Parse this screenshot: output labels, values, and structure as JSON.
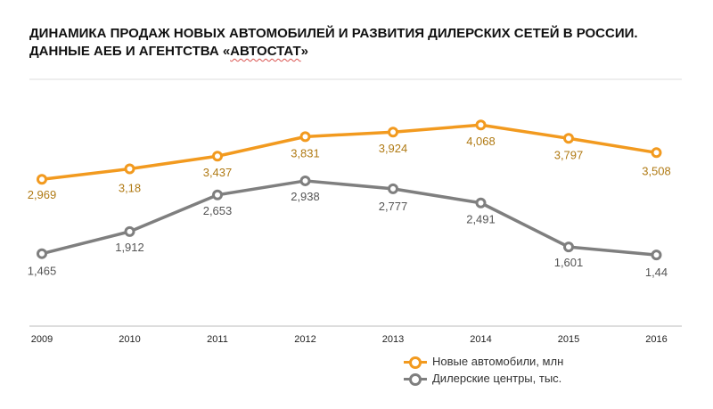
{
  "title": {
    "line1": "ДИНАМИКА ПРОДАЖ НОВЫХ АВТОМОБИЛЕЙ И РАЗВИТИЯ ДИЛЕРСКИХ СЕТЕЙ В РОССИИ.",
    "line2_prefix": "ДАННЫЕ АЕБ И АГЕНТСТВА «",
    "line2_word": "АВТОСТАТ",
    "line2_suffix": "»"
  },
  "colors": {
    "series_new_cars": "#f29a1f",
    "series_dealers": "#7f7f7f",
    "label_new_cars": "#b07a14",
    "label_dealers": "#555555",
    "grid": "#dddddd",
    "axis": "#bbbbbb"
  },
  "chart_data": {
    "type": "line",
    "x": [
      "2009",
      "2010",
      "2011",
      "2012",
      "2013",
      "2014",
      "2015",
      "2016"
    ],
    "series": [
      {
        "name": "Новые автомобили, млн",
        "values": [
          2.969,
          3.18,
          3.437,
          3.831,
          3.924,
          4.068,
          3.797,
          3.508
        ],
        "labels": [
          "2,969",
          "3,18",
          "3,437",
          "3,831",
          "3,924",
          "4,068",
          "3,797",
          "3,508"
        ],
        "color_key": "series_new_cars"
      },
      {
        "name": "Дилерские центры, тыс.",
        "values": [
          1.465,
          1.912,
          2.653,
          2.938,
          2.777,
          2.491,
          1.601,
          1.44
        ],
        "labels": [
          "1,465",
          "1,912",
          "2,653",
          "2,938",
          "2,777",
          "2,491",
          "1,601",
          "1,44"
        ],
        "color_key": "series_dealers"
      }
    ],
    "ylim": [
      0,
      4.4
    ],
    "grid": false,
    "legend_position": "bottom-right"
  }
}
